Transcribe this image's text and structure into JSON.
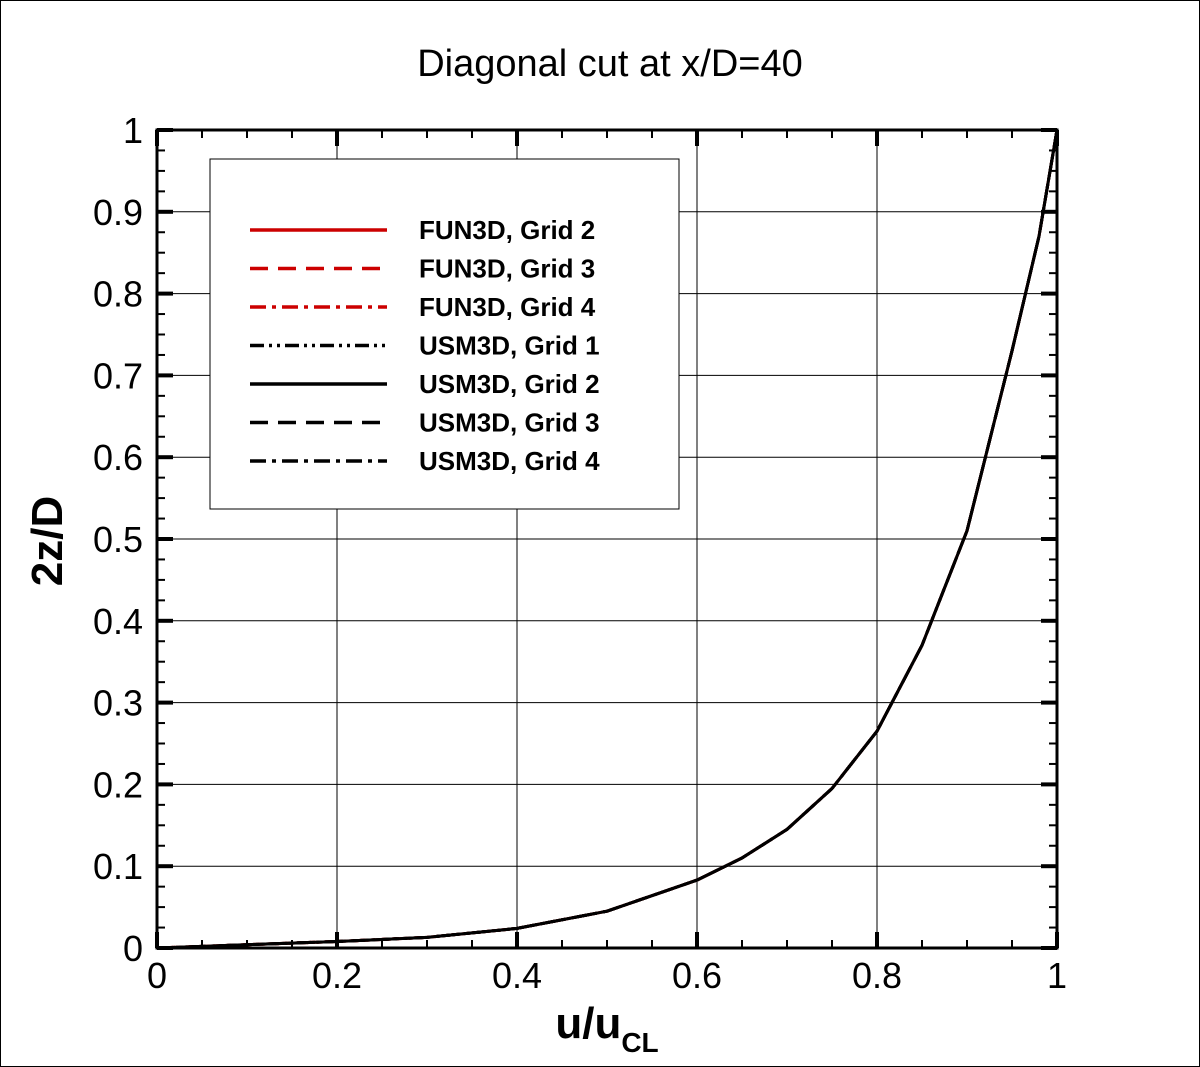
{
  "chart_data": {
    "type": "line",
    "title": "Diagonal cut at x/D=40",
    "xlabel": {
      "main": "u/u",
      "sub": "CL"
    },
    "ylabel": "2z/D",
    "xlim": [
      0,
      1
    ],
    "ylim": [
      0,
      1
    ],
    "grid": true,
    "x_ticks": [
      "0",
      "0.2",
      "0.4",
      "0.6",
      "0.8",
      "1"
    ],
    "y_ticks": [
      "0",
      "0.1",
      "0.2",
      "0.3",
      "0.4",
      "0.5",
      "0.6",
      "0.7",
      "0.8",
      "0.9",
      "1"
    ],
    "legend_position": "top-left",
    "profile": {
      "x": [
        0.0,
        0.1,
        0.2,
        0.3,
        0.4,
        0.5,
        0.6,
        0.65,
        0.7,
        0.75,
        0.8,
        0.85,
        0.9,
        0.95,
        0.98,
        1.0
      ],
      "y": [
        0.0,
        0.004,
        0.008,
        0.013,
        0.024,
        0.045,
        0.083,
        0.11,
        0.145,
        0.195,
        0.265,
        0.37,
        0.51,
        0.73,
        0.87,
        1.0
      ]
    },
    "series": [
      {
        "name": "FUN3D, Grid 2",
        "color": "#cc0000",
        "dash": "solid"
      },
      {
        "name": "FUN3D, Grid 3",
        "color": "#cc0000",
        "dash": "dashed"
      },
      {
        "name": "FUN3D, Grid 4",
        "color": "#cc0000",
        "dash": "dashdot"
      },
      {
        "name": "USM3D, Grid 1",
        "color": "#000000",
        "dash": "dashdotdot"
      },
      {
        "name": "USM3D, Grid 2",
        "color": "#000000",
        "dash": "solid"
      },
      {
        "name": "USM3D, Grid 3",
        "color": "#000000",
        "dash": "dashed"
      },
      {
        "name": "USM3D, Grid 4",
        "color": "#000000",
        "dash": "dashdot"
      }
    ]
  }
}
